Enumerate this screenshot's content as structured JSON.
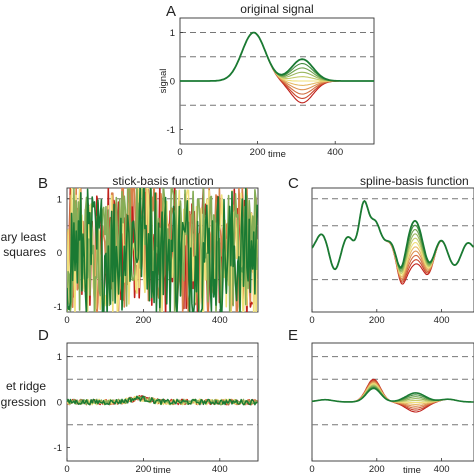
{
  "chart_data": [
    {
      "id": "A",
      "type": "line",
      "panel_label": "A",
      "title": "original signal",
      "xlabel": "time",
      "ylabel": "signal",
      "xlim": [
        0,
        500
      ],
      "ylim": [
        -1.3,
        1.3
      ],
      "x_ticks": [
        0,
        200,
        400
      ],
      "y_ticks": [
        -1,
        0,
        1
      ],
      "grid": false,
      "dashed_lines_y": [
        1,
        0.5,
        -0.5
      ],
      "series": [
        {
          "id": "original",
          "gaussians": [
            [
              190,
              30,
              1
            ]
          ],
          "color": "#1a6e2e"
        },
        {
          "id": "second-bump",
          "gaussians": [
            [
              315,
              28,
              0.42
            ]
          ],
          "note_scale_range": [
            -0.45,
            0.45
          ]
        }
      ],
      "colors": {
        "green": "#1a7a33",
        "red": "#c0201a",
        "yellow": "#f0e07a"
      }
    },
    {
      "id": "B",
      "type": "line",
      "panel_label": "B",
      "title": "stick-basis function",
      "row_label_lines": [
        "ary least",
        "squares"
      ],
      "xlim": [
        0,
        500
      ],
      "ylim": [
        -1.1,
        1.2
      ],
      "x_ticks": [
        0,
        200,
        400
      ],
      "y_ticks": [
        -1,
        0,
        1
      ],
      "dashed_lines_y": [
        1,
        0.5,
        -0.5
      ],
      "noise_amplitude": 0.9
    },
    {
      "id": "C",
      "type": "line",
      "panel_label": "C",
      "title": "spline-basis function",
      "xlim": [
        0,
        500
      ],
      "ylim": [
        -1.1,
        1.2
      ],
      "x_ticks": [
        0,
        200,
        400
      ],
      "dashed_lines_y": [
        1,
        0.5,
        -0.5
      ]
    },
    {
      "id": "D",
      "type": "line",
      "panel_label": "D",
      "row_label_lines": [
        "et ridge",
        "gression"
      ],
      "xlabel": "time",
      "xlim": [
        0,
        500
      ],
      "ylim": [
        -1.3,
        1.3
      ],
      "x_ticks": [
        0,
        200,
        400
      ],
      "y_ticks": [
        -1,
        0,
        1
      ],
      "dashed_lines_y": [
        1,
        0.5,
        -0.5
      ],
      "noise_amplitude": 0.06
    },
    {
      "id": "E",
      "type": "line",
      "panel_label": "E",
      "xlabel": "time",
      "xlim": [
        0,
        500
      ],
      "ylim": [
        -1.3,
        1.3
      ],
      "x_ticks": [
        0,
        200,
        400
      ],
      "dashed_lines_y": [
        1,
        0.5,
        -0.5
      ]
    }
  ]
}
